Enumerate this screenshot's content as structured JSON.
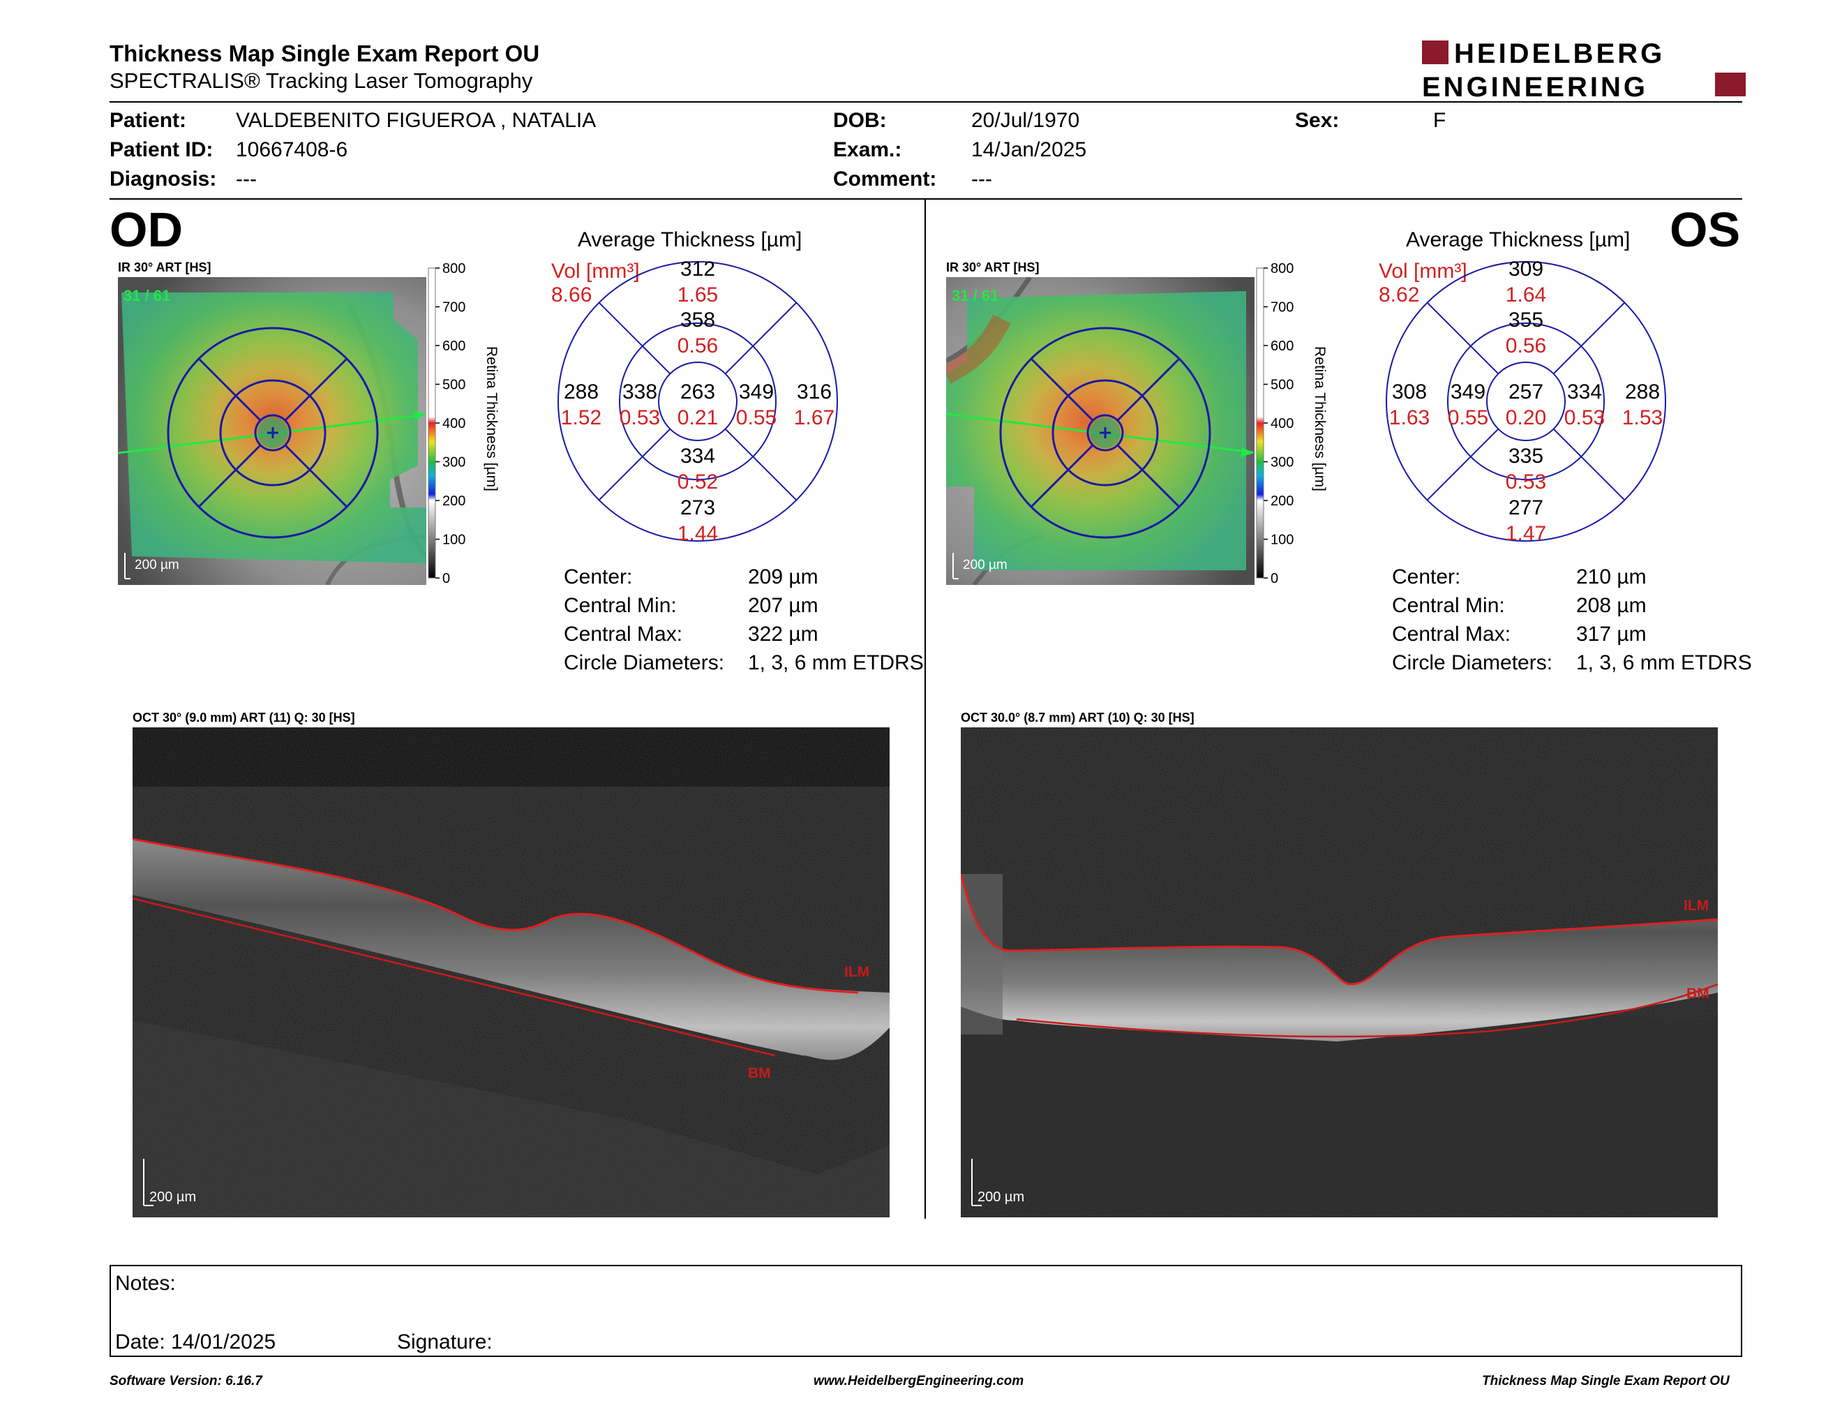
{
  "header": {
    "title": "Thickness Map Single Exam Report OU",
    "subtitle": "SPECTRALIS® Tracking Laser Tomography",
    "logo_line1": "HEIDELBERG",
    "logo_line2": "ENGINEERING",
    "brand_color": "#8b1a2b"
  },
  "patient": {
    "patient_label": "Patient:",
    "patient_value": "VALDEBENITO FIGUEROA , NATALIA",
    "id_label": "Patient ID:",
    "id_value": "10667408-6",
    "diagnosis_label": "Diagnosis:",
    "diagnosis_value": "---",
    "dob_label": "DOB:",
    "dob_value": "20/Jul/1970",
    "exam_label": "Exam.:",
    "exam_value": "14/Jan/2025",
    "comment_label": "Comment:",
    "comment_value": "---",
    "sex_label": "Sex:",
    "sex_value": "F"
  },
  "od": {
    "eye": "OD",
    "ir_title": "IR 30° ART [HS]",
    "frame": "31 / 61",
    "scale": "200 µm",
    "avg_title": "Average Thickness [µm]",
    "vol_label": "Vol [mm³]",
    "vol_total": "8.66",
    "sectors": {
      "center": {
        "t": "263",
        "v": "0.21"
      },
      "inner_sup": {
        "t": "358",
        "v": "0.56"
      },
      "inner_inf": {
        "t": "334",
        "v": "0.52"
      },
      "inner_left": {
        "t": "338",
        "v": "0.53"
      },
      "inner_right": {
        "t": "349",
        "v": "0.55"
      },
      "outer_sup": {
        "t": "312",
        "v": "1.65"
      },
      "outer_inf": {
        "t": "273",
        "v": "1.44"
      },
      "outer_left": {
        "t": "288",
        "v": "1.52"
      },
      "outer_right": {
        "t": "316",
        "v": "1.67"
      }
    },
    "stats": [
      {
        "label": "Center:",
        "value": "209 µm"
      },
      {
        "label": "Central Min:",
        "value": "207 µm"
      },
      {
        "label": "Central Max:",
        "value": "322 µm"
      },
      {
        "label": "Circle Diameters:",
        "value": "1, 3, 6 mm ETDRS"
      }
    ],
    "oct_title": "OCT 30° (9.0 mm) ART (11) Q: 30 [HS]",
    "ilm": "ILM",
    "bm": "BM",
    "oct_scale": "200 µm"
  },
  "os": {
    "eye": "OS",
    "ir_title": "IR 30° ART [HS]",
    "frame": "31 / 61",
    "scale": "200 µm",
    "avg_title": "Average Thickness [µm]",
    "vol_label": "Vol [mm³]",
    "vol_total": "8.62",
    "sectors": {
      "center": {
        "t": "257",
        "v": "0.20"
      },
      "inner_sup": {
        "t": "355",
        "v": "0.56"
      },
      "inner_inf": {
        "t": "335",
        "v": "0.53"
      },
      "inner_left": {
        "t": "349",
        "v": "0.55"
      },
      "inner_right": {
        "t": "334",
        "v": "0.53"
      },
      "outer_sup": {
        "t": "309",
        "v": "1.64"
      },
      "outer_inf": {
        "t": "277",
        "v": "1.47"
      },
      "outer_left": {
        "t": "308",
        "v": "1.63"
      },
      "outer_right": {
        "t": "288",
        "v": "1.53"
      }
    },
    "stats": [
      {
        "label": "Center:",
        "value": "210 µm"
      },
      {
        "label": "Central Min:",
        "value": "208 µm"
      },
      {
        "label": "Central Max:",
        "value": "317 µm"
      },
      {
        "label": "Circle Diameters:",
        "value": "1, 3, 6 mm ETDRS"
      }
    ],
    "oct_title": "OCT 30.0° (8.7 mm) ART (10) Q: 30 [HS]",
    "ilm": "ILM",
    "bm": "BM",
    "oct_scale": "200 µm"
  },
  "colorbar": {
    "ticks": [
      "800",
      "700",
      "600",
      "500",
      "400",
      "300",
      "200",
      "100",
      "0"
    ],
    "label": "Retina  Thickness [µm]"
  },
  "notes": {
    "notes_label": "Notes:",
    "date_label": "Date: 14/01/2025",
    "signature_label": "Signature:"
  },
  "footer": {
    "software": "Software Version: 6.16.7",
    "website": "www.HeidelbergEngineering.com",
    "report": "Thickness Map Single Exam Report OU"
  }
}
